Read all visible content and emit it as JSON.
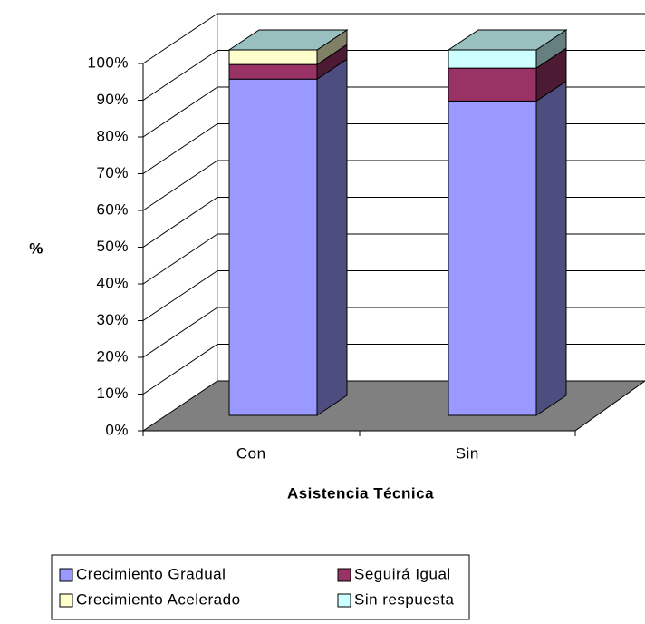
{
  "chart_data": {
    "type": "bar",
    "stacked": true,
    "y_label": "%",
    "x_label": "Asistencia Técnica",
    "categories": [
      "Con",
      "Sin"
    ],
    "series": [
      {
        "name": "Crecimiento Gradual",
        "color": "#9999ff",
        "values": [
          92,
          86
        ]
      },
      {
        "name": "Seguirá Igual",
        "color": "#993366",
        "values": [
          4,
          9
        ]
      },
      {
        "name": "Crecimiento Acelerado",
        "color": "#ffffcc",
        "values": [
          4,
          0
        ]
      },
      {
        "name": "Sin respuesta",
        "color": "#ccffff",
        "values": [
          0,
          5
        ]
      }
    ],
    "ylim": [
      0,
      100
    ],
    "yticks": [
      {
        "value": 0,
        "label": "0%"
      },
      {
        "value": 10,
        "label": "10%"
      },
      {
        "value": 20,
        "label": "20%"
      },
      {
        "value": 30,
        "label": "30%"
      },
      {
        "value": 40,
        "label": "40%"
      },
      {
        "value": 50,
        "label": "50%"
      },
      {
        "value": 60,
        "label": "60%"
      },
      {
        "value": 70,
        "label": "70%"
      },
      {
        "value": 80,
        "label": "80%"
      },
      {
        "value": 90,
        "label": "90%"
      },
      {
        "value": 100,
        "label": "100%"
      }
    ],
    "grid": true
  }
}
